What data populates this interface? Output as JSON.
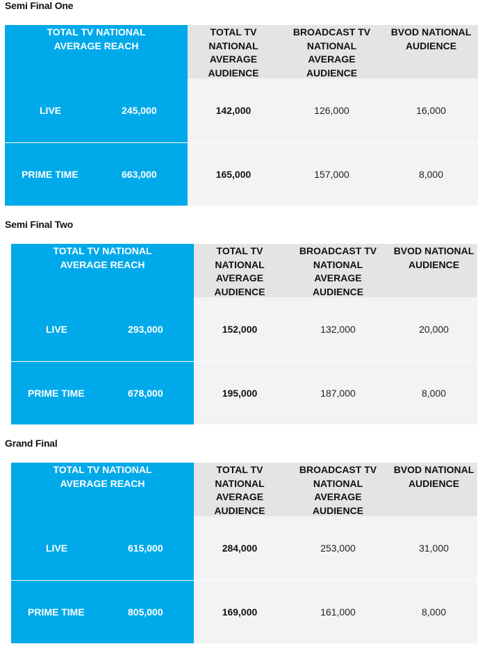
{
  "headers": {
    "reach": "TOTAL TV NATIONAL AVERAGE REACH",
    "total_tv": "TOTAL TV NATIONAL AVERAGE AUDIENCE",
    "broadcast": "BROADCAST TV NATIONAL AVERAGE AUDIENCE",
    "bvod": "BVOD NATIONAL AUDIENCE"
  },
  "sections": [
    {
      "title": "Semi Final One",
      "rows": [
        {
          "label": "LIVE",
          "reach": "245,000",
          "total": "142,000",
          "broadcast": "126,000",
          "bvod": "16,000"
        },
        {
          "label": "PRIME TIME",
          "reach": "663,000",
          "total": "165,000",
          "broadcast": "157,000",
          "bvod": "8,000"
        }
      ]
    },
    {
      "title": "Semi Final Two",
      "rows": [
        {
          "label": "LIVE",
          "reach": "293,000",
          "total": "152,000",
          "broadcast": "132,000",
          "bvod": "20,000"
        },
        {
          "label": "PRIME TIME",
          "reach": "678,000",
          "total": "195,000",
          "broadcast": "187,000",
          "bvod": "8,000"
        }
      ]
    },
    {
      "title": "Grand Final",
      "rows": [
        {
          "label": "LIVE",
          "reach": "615,000",
          "total": "284,000",
          "broadcast": "253,000",
          "bvod": "31,000"
        },
        {
          "label": "PRIME TIME",
          "reach": "805,000",
          "total": "169,000",
          "broadcast": "161,000",
          "bvod": "8,000"
        }
      ]
    }
  ]
}
